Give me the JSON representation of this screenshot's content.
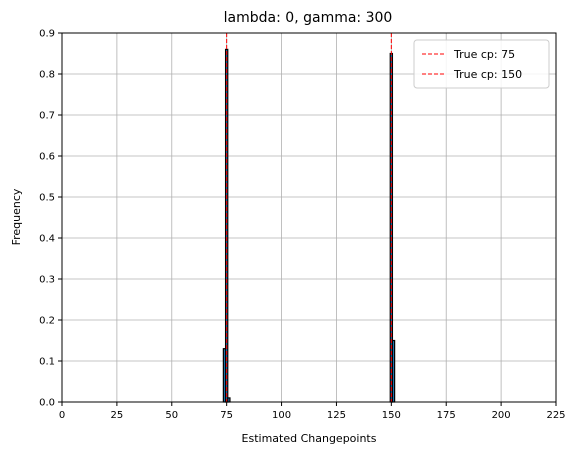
{
  "chart_data": {
    "type": "bar",
    "title": "lambda: 0, gamma: 300",
    "xlabel": "Estimated Changepoints",
    "ylabel": "Frequency",
    "xlim": [
      0,
      225
    ],
    "ylim": [
      0,
      0.9
    ],
    "xticks": [
      "0",
      "25",
      "50",
      "75",
      "100",
      "125",
      "150",
      "175",
      "200",
      "225"
    ],
    "yticks": [
      "0.0",
      "0.1",
      "0.2",
      "0.3",
      "0.4",
      "0.5",
      "0.6",
      "0.7",
      "0.8",
      "0.9"
    ],
    "xtick_values": [
      0,
      25,
      50,
      75,
      100,
      125,
      150,
      175,
      200,
      225
    ],
    "ytick_values": [
      0,
      0.1,
      0.2,
      0.3,
      0.4,
      0.5,
      0.6,
      0.7,
      0.8,
      0.9
    ],
    "grid": true,
    "legend_position": "top-right",
    "bar_color": "#1f77b4",
    "bar_edge_color": "#000000",
    "bars": [
      {
        "x": 74,
        "value": 0.13
      },
      {
        "x": 75,
        "value": 0.86
      },
      {
        "x": 76,
        "value": 0.01
      },
      {
        "x": 150,
        "value": 0.85
      },
      {
        "x": 151,
        "value": 0.15
      }
    ],
    "reference_lines": [
      {
        "x": 75,
        "label": "True cp: 75",
        "color": "#ff0000",
        "style": "dashed"
      },
      {
        "x": 150,
        "label": "True cp: 150",
        "color": "#ff0000",
        "style": "dashed"
      }
    ]
  }
}
